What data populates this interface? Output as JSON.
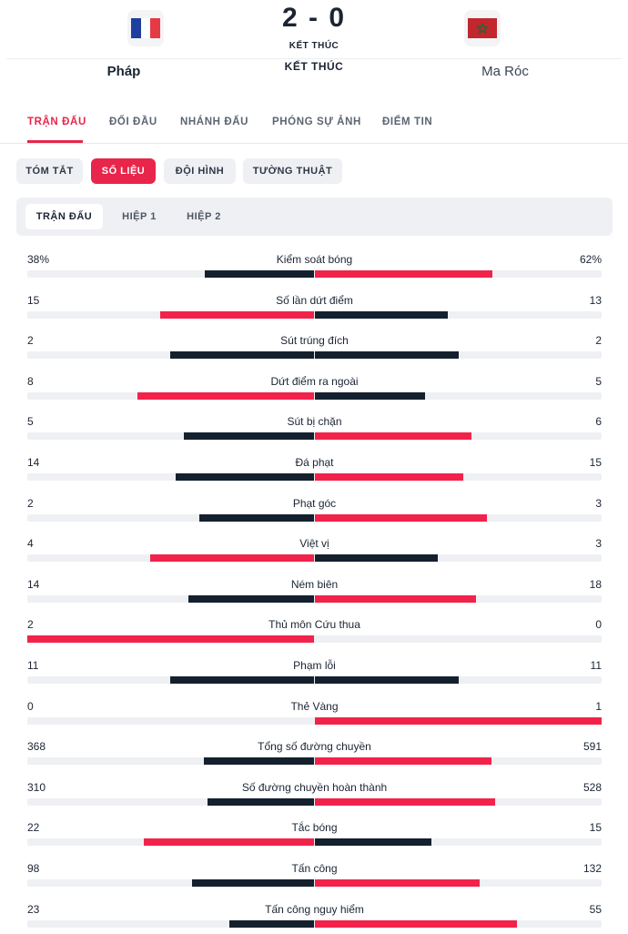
{
  "colors": {
    "accent": "#e8254a",
    "leading_bar": "#f2234b",
    "trailing_bar": "#14202e",
    "track": "#eef0f3"
  },
  "match": {
    "home_team": "Pháp",
    "away_team": "Ma Róc",
    "score": "2 - 0",
    "status_small": "KẾT THÚC",
    "status_big": "KẾT THÚC",
    "home_flag_icon": "france-flag-icon",
    "away_flag_icon": "morocco-flag-icon"
  },
  "main_tabs": [
    {
      "label": "TRẬN ĐẤU",
      "active": true
    },
    {
      "label": "ĐỐI ĐẦU",
      "active": false
    },
    {
      "label": "NHÁNH ĐẤU",
      "active": false
    },
    {
      "label": "PHÓNG SỰ ẢNH",
      "active": false
    },
    {
      "label": "ĐIỂM TIN",
      "active": false
    }
  ],
  "sub_tabs": [
    {
      "label": "TÓM TẮT",
      "active": false
    },
    {
      "label": "SỐ LIỆU",
      "active": true
    },
    {
      "label": "ĐỘI HÌNH",
      "active": false
    },
    {
      "label": "TƯỜNG THUẬT",
      "active": false
    }
  ],
  "period_tabs": [
    {
      "label": "TRẬN ĐẤU",
      "active": true
    },
    {
      "label": "HIỆP 1",
      "active": false
    },
    {
      "label": "HIỆP 2",
      "active": false
    }
  ],
  "stats": [
    {
      "label": "Kiểm soát bóng",
      "home": "38%",
      "away": "62%",
      "home_value": 38,
      "away_value": 62
    },
    {
      "label": "Số lần dứt điểm",
      "home": "15",
      "away": "13",
      "home_value": 15,
      "away_value": 13
    },
    {
      "label": "Sút trúng đích",
      "home": "2",
      "away": "2",
      "home_value": 2,
      "away_value": 2
    },
    {
      "label": "Dứt điểm ra ngoài",
      "home": "8",
      "away": "5",
      "home_value": 8,
      "away_value": 5
    },
    {
      "label": "Sút bị chặn",
      "home": "5",
      "away": "6",
      "home_value": 5,
      "away_value": 6
    },
    {
      "label": "Đá phạt",
      "home": "14",
      "away": "15",
      "home_value": 14,
      "away_value": 15
    },
    {
      "label": "Phạt góc",
      "home": "2",
      "away": "3",
      "home_value": 2,
      "away_value": 3
    },
    {
      "label": "Việt vị",
      "home": "4",
      "away": "3",
      "home_value": 4,
      "away_value": 3
    },
    {
      "label": "Ném biên",
      "home": "14",
      "away": "18",
      "home_value": 14,
      "away_value": 18
    },
    {
      "label": "Thủ môn Cứu thua",
      "home": "2",
      "away": "0",
      "home_value": 2,
      "away_value": 0
    },
    {
      "label": "Phạm lỗi",
      "home": "11",
      "away": "11",
      "home_value": 11,
      "away_value": 11
    },
    {
      "label": "Thẻ Vàng",
      "home": "0",
      "away": "1",
      "home_value": 0,
      "away_value": 1
    },
    {
      "label": "Tổng số đường chuyền",
      "home": "368",
      "away": "591",
      "home_value": 368,
      "away_value": 591
    },
    {
      "label": "Số đường chuyền hoàn thành",
      "home": "310",
      "away": "528",
      "home_value": 310,
      "away_value": 528
    },
    {
      "label": "Tắc bóng",
      "home": "22",
      "away": "15",
      "home_value": 22,
      "away_value": 15
    },
    {
      "label": "Tấn công",
      "home": "98",
      "away": "132",
      "home_value": 98,
      "away_value": 132
    },
    {
      "label": "Tấn công nguy hiểm",
      "home": "23",
      "away": "55",
      "home_value": 23,
      "away_value": 55
    }
  ]
}
